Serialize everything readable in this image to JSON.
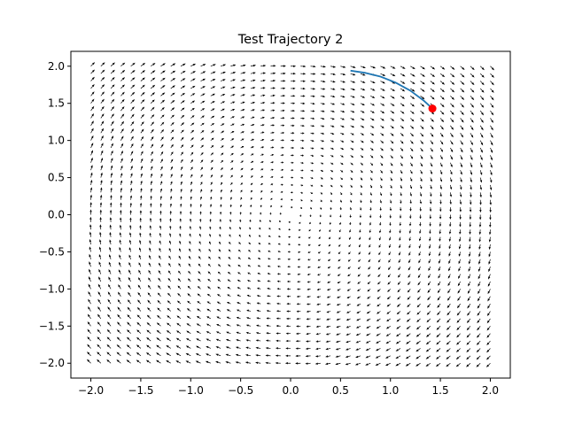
{
  "chart_data": {
    "type": "quiver",
    "title": "Test Trajectory 2",
    "xlabel": "",
    "ylabel": "",
    "xlim": [
      -2.2,
      2.2
    ],
    "ylim": [
      -2.2,
      2.2
    ],
    "xticks": [
      -2.0,
      -1.5,
      -1.0,
      -0.5,
      0.0,
      0.5,
      1.0,
      1.5,
      2.0
    ],
    "yticks": [
      -2.0,
      -1.5,
      -1.0,
      -0.5,
      0.0,
      0.5,
      1.0,
      1.5,
      2.0
    ],
    "xtick_labels": [
      "−2.0",
      "−1.5",
      "−1.0",
      "−0.5",
      "0.0",
      "0.5",
      "1.0",
      "1.5",
      "2.0"
    ],
    "ytick_labels": [
      "−2.0",
      "−1.5",
      "−1.0",
      "−0.5",
      "0.0",
      "0.5",
      "1.0",
      "1.5",
      "2.0"
    ],
    "grid": false,
    "vector_field": {
      "x_range": [
        -2.0,
        2.0
      ],
      "y_range": [
        -2.0,
        2.0
      ],
      "n": 41,
      "field": "rotation: u = y, v = -x (clockwise)",
      "color": "#000000"
    },
    "trajectory": {
      "color": "#1f77b4",
      "x": [
        0.6,
        0.75,
        0.9,
        1.05,
        1.2,
        1.33,
        1.42
      ],
      "y": [
        1.94,
        1.91,
        1.86,
        1.78,
        1.67,
        1.54,
        1.43
      ]
    },
    "end_point": {
      "x": 1.42,
      "y": 1.43,
      "color": "#ff0000"
    }
  }
}
